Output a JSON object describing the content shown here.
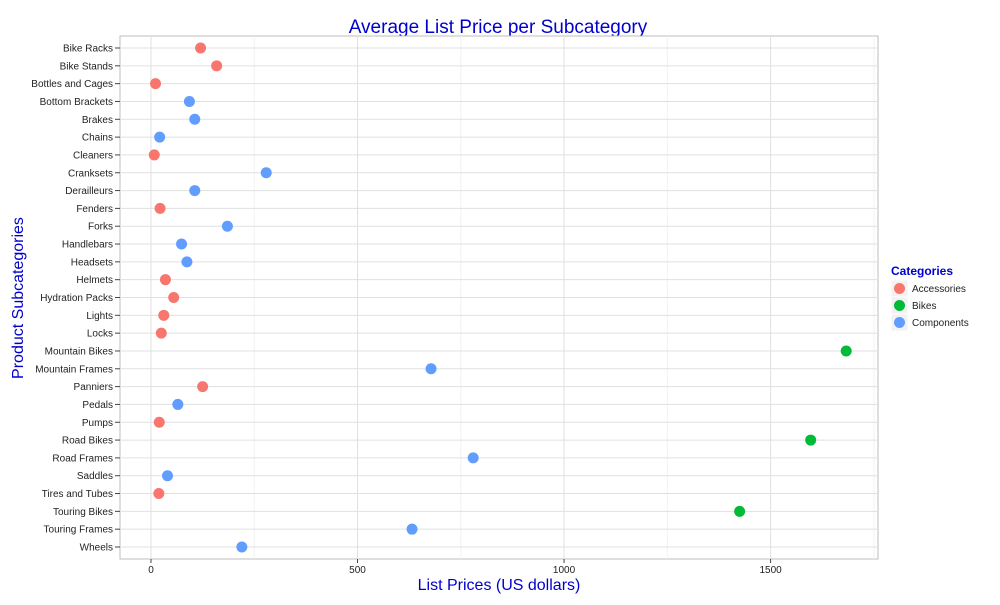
{
  "chart_data": {
    "type": "scatter",
    "title": "Average List Price per Subcategory",
    "xlabel": "List Prices (US dollars)",
    "ylabel": "Product Subcategories",
    "xlim": [
      -75,
      1760
    ],
    "xticks": [
      0,
      500,
      1000,
      1500
    ],
    "grid": true,
    "legend": {
      "title": "Categories",
      "placement": "right",
      "entries": [
        {
          "name": "Accessories",
          "color": "#F8766D"
        },
        {
          "name": "Bikes",
          "color": "#00BA38"
        },
        {
          "name": "Components",
          "color": "#619CFF"
        }
      ]
    },
    "categories": [
      "Bike Racks",
      "Bike Stands",
      "Bottles and Cages",
      "Bottom Brackets",
      "Brakes",
      "Chains",
      "Cleaners",
      "Cranksets",
      "Derailleurs",
      "Fenders",
      "Forks",
      "Handlebars",
      "Headsets",
      "Helmets",
      "Hydration Packs",
      "Lights",
      "Locks",
      "Mountain Bikes",
      "Mountain Frames",
      "Panniers",
      "Pedals",
      "Pumps",
      "Road Bikes",
      "Road Frames",
      "Saddles",
      "Tires and Tubes",
      "Touring Bikes",
      "Touring Frames",
      "Wheels"
    ],
    "points": [
      {
        "subcategory": "Bike Racks",
        "category": "Accessories",
        "price": 120
      },
      {
        "subcategory": "Bike Stands",
        "category": "Accessories",
        "price": 159
      },
      {
        "subcategory": "Bottles and Cages",
        "category": "Accessories",
        "price": 11
      },
      {
        "subcategory": "Bottom Brackets",
        "category": "Components",
        "price": 93
      },
      {
        "subcategory": "Brakes",
        "category": "Components",
        "price": 106
      },
      {
        "subcategory": "Chains",
        "category": "Components",
        "price": 21
      },
      {
        "subcategory": "Cleaners",
        "category": "Accessories",
        "price": 8
      },
      {
        "subcategory": "Cranksets",
        "category": "Components",
        "price": 279
      },
      {
        "subcategory": "Derailleurs",
        "category": "Components",
        "price": 106
      },
      {
        "subcategory": "Fenders",
        "category": "Accessories",
        "price": 22
      },
      {
        "subcategory": "Forks",
        "category": "Components",
        "price": 185
      },
      {
        "subcategory": "Handlebars",
        "category": "Components",
        "price": 74
      },
      {
        "subcategory": "Headsets",
        "category": "Components",
        "price": 87
      },
      {
        "subcategory": "Helmets",
        "category": "Accessories",
        "price": 35
      },
      {
        "subcategory": "Hydration Packs",
        "category": "Accessories",
        "price": 55
      },
      {
        "subcategory": "Lights",
        "category": "Accessories",
        "price": 31
      },
      {
        "subcategory": "Locks",
        "category": "Accessories",
        "price": 25
      },
      {
        "subcategory": "Mountain Bikes",
        "category": "Bikes",
        "price": 1683
      },
      {
        "subcategory": "Mountain Frames",
        "category": "Components",
        "price": 678
      },
      {
        "subcategory": "Panniers",
        "category": "Accessories",
        "price": 125
      },
      {
        "subcategory": "Pedals",
        "category": "Components",
        "price": 65
      },
      {
        "subcategory": "Pumps",
        "category": "Accessories",
        "price": 20
      },
      {
        "subcategory": "Road Bikes",
        "category": "Bikes",
        "price": 1597
      },
      {
        "subcategory": "Road Frames",
        "category": "Components",
        "price": 780
      },
      {
        "subcategory": "Saddles",
        "category": "Components",
        "price": 40
      },
      {
        "subcategory": "Tires and Tubes",
        "category": "Accessories",
        "price": 19
      },
      {
        "subcategory": "Touring Bikes",
        "category": "Bikes",
        "price": 1425
      },
      {
        "subcategory": "Touring Frames",
        "category": "Components",
        "price": 632
      },
      {
        "subcategory": "Wheels",
        "category": "Components",
        "price": 220
      }
    ]
  }
}
